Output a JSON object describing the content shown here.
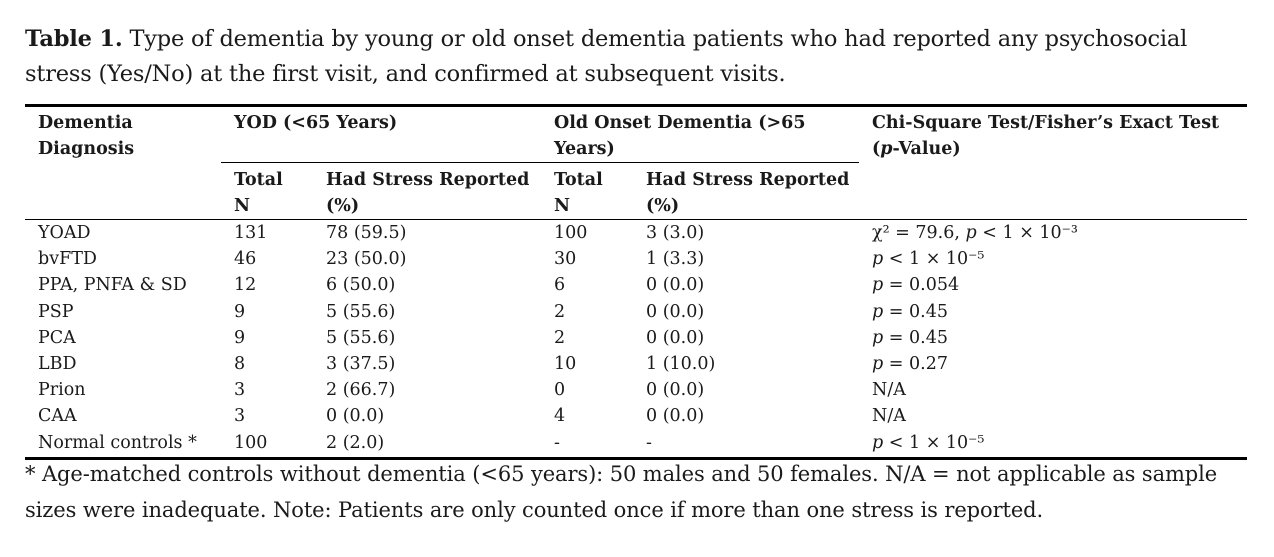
{
  "caption": {
    "label": "Table 1.",
    "text": " Type of dementia by young or old onset dementia patients who had reported any psychosocial stress (Yes/No) at the first visit, and confirmed at subsequent visits."
  },
  "headers": {
    "diagnosis": "Dementia Diagnosis",
    "yod": "YOD (<65 Years)",
    "old": "Old Onset Dementia (>65 Years)",
    "test_pre": "Chi-Square Test/Fisher’s Exact Test (",
    "test_p": "p",
    "test_post": "-Value)",
    "total_n": "Total N",
    "had_stress": "Had Stress Reported (%)"
  },
  "rows": [
    {
      "dx": "YOAD",
      "yod_n": "131",
      "yod_s": "78 (59.5)",
      "old_n": "100",
      "old_s": "3 (3.0)",
      "test": "χ² = 79.6, p < 1 × 10⁻³"
    },
    {
      "dx": "bvFTD",
      "yod_n": "46",
      "yod_s": "23 (50.0)",
      "old_n": "30",
      "old_s": "1 (3.3)",
      "test": "p < 1 × 10⁻⁵"
    },
    {
      "dx": "PPA, PNFA & SD",
      "yod_n": "12",
      "yod_s": "6 (50.0)",
      "old_n": "6",
      "old_s": "0 (0.0)",
      "test": "p = 0.054"
    },
    {
      "dx": "PSP",
      "yod_n": "9",
      "yod_s": "5 (55.6)",
      "old_n": "2",
      "old_s": "0 (0.0)",
      "test": "p = 0.45"
    },
    {
      "dx": "PCA",
      "yod_n": "9",
      "yod_s": "5 (55.6)",
      "old_n": "2",
      "old_s": "0 (0.0)",
      "test": "p = 0.45"
    },
    {
      "dx": "LBD",
      "yod_n": "8",
      "yod_s": "3 (37.5)",
      "old_n": "10",
      "old_s": "1 (10.0)",
      "test": "p = 0.27"
    },
    {
      "dx": "Prion",
      "yod_n": "3",
      "yod_s": "2 (66.7)",
      "old_n": "0",
      "old_s": "0 (0.0)",
      "test": "N/A"
    },
    {
      "dx": "CAA",
      "yod_n": "3",
      "yod_s": "0 (0.0)",
      "old_n": "4",
      "old_s": "0 (0.0)",
      "test": "N/A"
    },
    {
      "dx": "Normal controls *",
      "yod_n": "100",
      "yod_s": "2 (2.0)",
      "old_n": "-",
      "old_s": "-",
      "test": "p < 1 × 10⁻⁵"
    }
  ],
  "footnote": "* Age-matched controls without dementia (<65 years): 50 males and 50 females. N/A = not applicable as sample sizes were inadequate. Note: Patients are only counted once if more than one stress is reported."
}
